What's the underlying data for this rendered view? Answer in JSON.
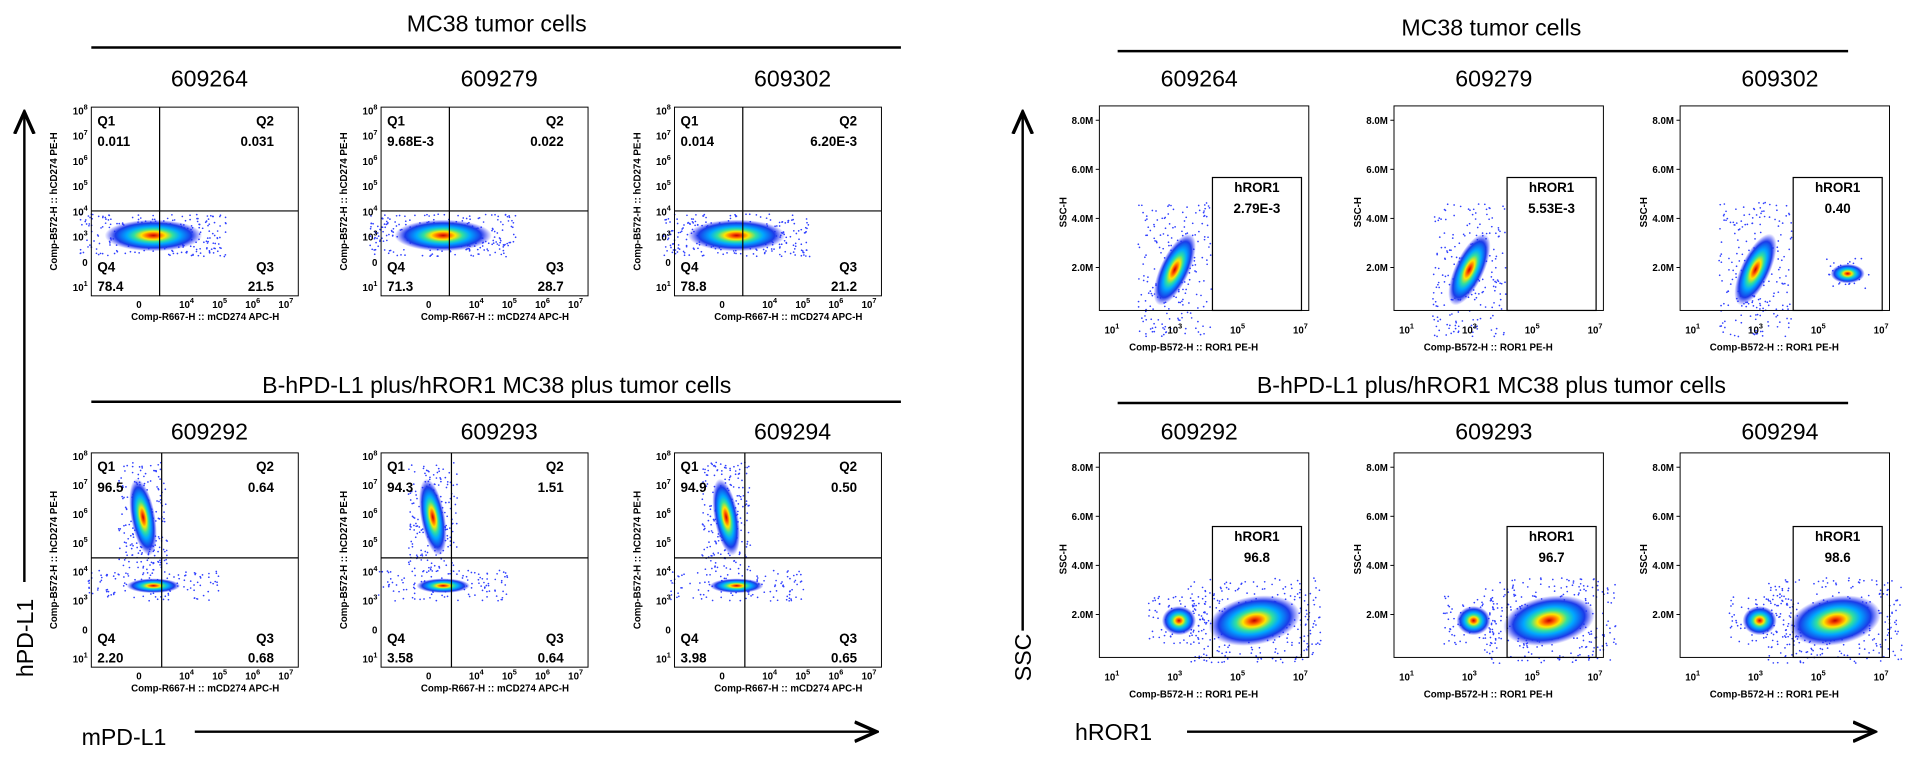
{
  "left": {
    "groups": [
      {
        "title": "MC38 tumor cells",
        "plots": [
          {
            "id": "609264",
            "q": [
              "0.011",
              "0.031",
              "21.5",
              "78.4"
            ]
          },
          {
            "id": "609279",
            "q": [
              "9.68E-3",
              "0.022",
              "28.7",
              "71.3"
            ]
          },
          {
            "id": "609302",
            "q": [
              "0.014",
              "6.20E-3",
              "21.2",
              "78.8"
            ]
          }
        ]
      },
      {
        "title": "B-hPD-L1 plus/hROR1 MC38 plus tumor cells",
        "plots": [
          {
            "id": "609292",
            "q": [
              "96.5",
              "0.64",
              "0.68",
              "2.20"
            ]
          },
          {
            "id": "609293",
            "q": [
              "94.3",
              "1.51",
              "0.64",
              "3.58"
            ]
          },
          {
            "id": "609294",
            "q": [
              "94.9",
              "0.50",
              "0.65",
              "3.98"
            ]
          }
        ]
      }
    ],
    "quadrant_names": [
      "Q1",
      "Q2",
      "Q3",
      "Q4"
    ],
    "x_label": "Comp-R667-H :: mCD274 APC-H",
    "y_label": "Comp-B572-H :: hCD274 PE-H",
    "x_ticks": [
      "0",
      {
        "b": "10",
        "e": "4"
      },
      {
        "b": "10",
        "e": "5"
      },
      {
        "b": "10",
        "e": "6"
      },
      {
        "b": "10",
        "e": "7"
      }
    ],
    "y_ticks": [
      {
        "b": "10",
        "e": "8"
      },
      {
        "b": "10",
        "e": "7"
      },
      {
        "b": "10",
        "e": "6"
      },
      {
        "b": "10",
        "e": "5"
      },
      {
        "b": "10",
        "e": "4"
      },
      {
        "b": "10",
        "e": "3"
      },
      "0",
      {
        "b": "10",
        "e": "1"
      }
    ],
    "x_arrow": "mPD-L1",
    "y_arrow": "hPD-L1"
  },
  "right": {
    "groups": [
      {
        "title": "MC38 tumor cells",
        "plots": [
          {
            "id": "609264",
            "gate_value": "2.79E-3"
          },
          {
            "id": "609279",
            "gate_value": "5.53E-3"
          },
          {
            "id": "609302",
            "gate_value": "0.40"
          }
        ]
      },
      {
        "title": "B-hPD-L1 plus/hROR1 MC38 plus tumor cells",
        "plots": [
          {
            "id": "609292",
            "gate_value": "96.8"
          },
          {
            "id": "609293",
            "gate_value": "96.7"
          },
          {
            "id": "609294",
            "gate_value": "98.6"
          }
        ]
      }
    ],
    "gate_name": "hROR1",
    "x_label": "Comp-B572-H :: ROR1 PE-H",
    "y_label": "SSC-H",
    "x_ticks": [
      {
        "b": "10",
        "e": "1"
      },
      {
        "b": "10",
        "e": "3"
      },
      {
        "b": "10",
        "e": "5"
      },
      {
        "b": "10",
        "e": "7"
      }
    ],
    "y_ticks": [
      "8.0M",
      "6.0M",
      "4.0M",
      "2.0M"
    ],
    "x_arrow": "hROR1",
    "y_arrow": "SSC"
  }
}
